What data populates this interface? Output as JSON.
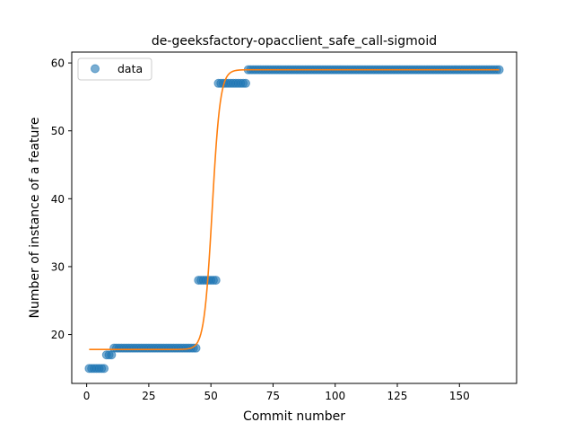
{
  "chart_data": {
    "type": "scatter",
    "title": "de-geeksfactory-opacclient_safe_call-sigmoid",
    "xlabel": "Commit number",
    "ylabel": "Number of instance of a feature",
    "xlim": [
      -6,
      173
    ],
    "ylim": [
      12.8,
      61.6
    ],
    "xticks": [
      0,
      25,
      50,
      75,
      100,
      125,
      150
    ],
    "yticks": [
      20,
      30,
      40,
      50,
      60
    ],
    "grid": false,
    "legend": {
      "placement": "upper-left",
      "entries": [
        "data"
      ]
    },
    "colors": {
      "data": "#1f77b4",
      "fit": "#ff7f0e"
    },
    "series": [
      {
        "name": "data",
        "kind": "scatter",
        "segments": [
          {
            "x_start": 1,
            "x_end": 7,
            "y": 15
          },
          {
            "x_start": 8,
            "x_end": 10,
            "y": 17
          },
          {
            "x_start": 11,
            "x_end": 44,
            "y": 18
          },
          {
            "x_start": 45,
            "x_end": 52,
            "y": 28
          },
          {
            "x_start": 53,
            "x_end": 64,
            "y": 57
          },
          {
            "x_start": 65,
            "x_end": 166,
            "y": 59
          }
        ]
      },
      {
        "kind": "line",
        "model": "sigmoid",
        "x_range": [
          1,
          166
        ],
        "params": {
          "lower": 17.8,
          "upper": 59.0,
          "midpoint": 50.5,
          "rate": 0.62
        }
      }
    ]
  }
}
